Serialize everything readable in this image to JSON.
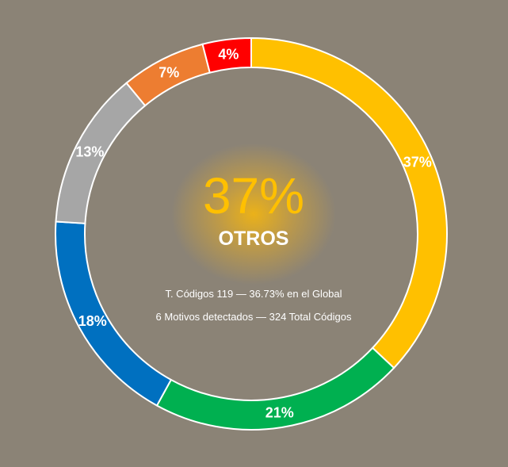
{
  "center": {
    "percent": "37%",
    "category": "OTROS",
    "line1": "T. Códigos 119 — 36.73% en el Global",
    "line2": "6 Motivos detectados — 324 Total Códigos"
  },
  "chart_data": {
    "type": "pie",
    "donut": true,
    "title": "",
    "slices": [
      {
        "label": "37%",
        "value": 37,
        "color": "#FFC000"
      },
      {
        "label": "21%",
        "value": 21,
        "color": "#00B050"
      },
      {
        "label": "18%",
        "value": 18,
        "color": "#0070C0"
      },
      {
        "label": "13%",
        "value": 13,
        "color": "#A6A6A6"
      },
      {
        "label": "7%",
        "value": 7,
        "color": "#ED7D31"
      },
      {
        "label": "4%",
        "value": 4,
        "color": "#FF0000"
      }
    ]
  }
}
